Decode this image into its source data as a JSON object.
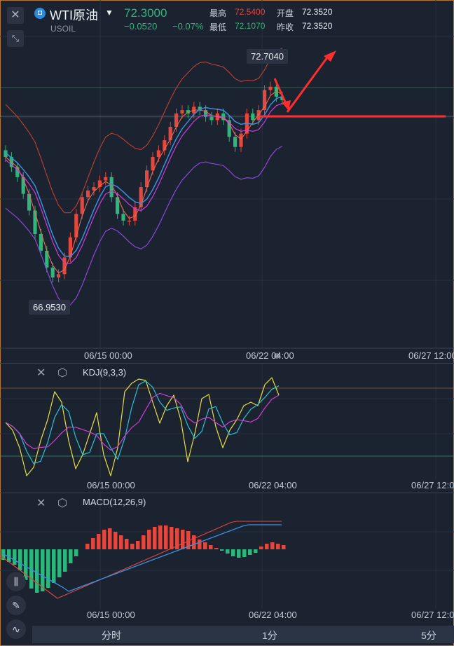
{
  "header": {
    "symbol_name": "WTI原油",
    "symbol_code": "USOIL",
    "last_price": "72.3000",
    "change": "−0.0520",
    "change_pct": "−0.07%",
    "high_label": "最高",
    "high_value": "72.5400",
    "low_label": "最低",
    "low_value": "72.1070",
    "open_label": "开盘",
    "open_value": "72.3520",
    "prev_close_label": "昨收",
    "prev_close_value": "72.3520"
  },
  "main_chart": {
    "max_marker": "72.7040",
    "min_marker": "66.9530",
    "time_labels": [
      "06/15 00:00",
      "06/22 04:00",
      "06/27 12:00"
    ]
  },
  "kdj": {
    "title": "KDJ(9,3,3)",
    "time_labels": [
      "06/15 00:00",
      "06/22 04:00",
      "06/27 12:00"
    ]
  },
  "macd": {
    "title": "MACD(12,26,9)",
    "time_labels": [
      "06/15 00:00",
      "06/22 04:00",
      "06/27 12:00"
    ]
  },
  "tabs": [
    "分时",
    "1分",
    "5分"
  ],
  "colors": {
    "up": "#e2483d",
    "down": "#2fb67a",
    "accent_blue": "#2a8be0",
    "annotation_red": "#ff2d2d"
  },
  "icons": [
    "close-icon",
    "collapse-icon",
    "settings-icon",
    "candlestick-icon",
    "pen-icon",
    "indicator-icon",
    "chevron-down-icon"
  ],
  "chart_data": {
    "type": "candlestick",
    "closes": [
      70.6,
      70.3,
      70.0,
      69.5,
      69.0,
      68.3,
      67.8,
      67.3,
      67.0,
      67.1,
      67.6,
      68.2,
      68.9,
      69.4,
      69.6,
      69.7,
      69.9,
      70.0,
      69.4,
      68.9,
      68.7,
      68.7,
      69.1,
      69.7,
      70.2,
      70.6,
      70.8,
      71.1,
      71.5,
      71.9,
      72.0,
      71.9,
      72.1,
      72.0,
      71.8,
      71.7,
      71.9,
      71.7,
      71.2,
      70.9,
      71.3,
      71.9,
      71.7,
      72.0,
      72.6,
      72.7,
      72.4,
      72.3
    ],
    "y_range": [
      66.5,
      73.3
    ]
  }
}
